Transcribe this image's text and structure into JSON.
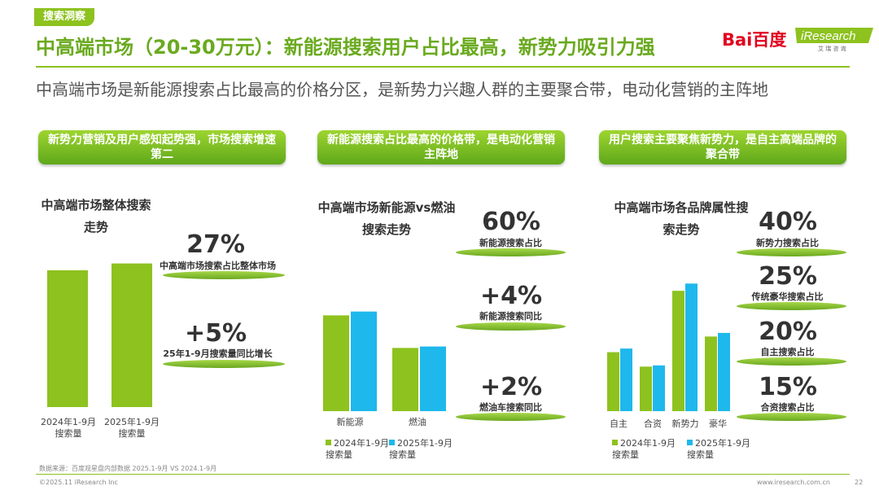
{
  "header": {
    "tag": "搜索洞察",
    "title": "中高端市场（20-30万元）：新能源搜索用户占比最高，新势力吸引力强",
    "subtitle": "中高端市场是新能源搜索占比最高的价格分区，是新势力兴趣人群的主要聚合带，电动化营销的主阵地",
    "baidu_logo": "Bai百度",
    "iresearch_logo": "iResearch",
    "iresearch_sub": "艾 瑞 咨 询"
  },
  "colors": {
    "green": "#8dc21f",
    "blue": "#1eb8ec",
    "accent": "#6aaa1f"
  },
  "panel1": {
    "banner": "新势力营销及用户感知起势强，市场搜索增速第二",
    "chart_title": "中高端市场整体搜索走势",
    "stat1_value": "27%",
    "stat1_label": "中高端市场搜索占比整体市场",
    "stat2_value": "+5%",
    "stat2_label": "25年1-9月搜索量同比增长"
  },
  "panel2": {
    "banner": "新能源搜索占比最高的价格带，是电动化营销主阵地",
    "chart_title": "中高端市场新能源vs燃油搜索走势",
    "stat1_value": "60%",
    "stat1_label": "新能源搜索占比",
    "stat2_value": "+4%",
    "stat2_label": "新能源搜索同比",
    "stat3_value": "+2%",
    "stat3_label": "燃油车搜索同比"
  },
  "panel3": {
    "banner": "用户搜索主要聚焦新势力，是自主高端品牌的聚合带",
    "chart_title": "中高端市场各品牌属性搜索走势",
    "stat1_value": "40%",
    "stat1_label": "新势力搜索占比",
    "stat2_value": "25%",
    "stat2_label": "传统豪华搜索占比",
    "stat3_value": "20%",
    "stat3_label": "自主搜索占比",
    "stat4_value": "15%",
    "stat4_label": "合资搜索占比"
  },
  "footer": {
    "source": "数据来源：百度观星盘内部数据 2025.1-9月 VS 2024.1-9月",
    "copyright": "©2025.11 iResearch Inc",
    "url": "www.iresearch.com.cn",
    "page": "22"
  },
  "chart_data": [
    {
      "type": "bar",
      "title": "中高端市场整体搜索走势",
      "categories": [
        "2024年1-9月\n搜索量",
        "2025年1-9月\n搜索量"
      ],
      "series": [
        {
          "name": "",
          "values": [
            100,
            105
          ]
        }
      ],
      "ylim": [
        0,
        125
      ]
    },
    {
      "type": "bar",
      "title": "中高端市场新能源vs燃油搜索走势",
      "categories": [
        "新能源",
        "燃油"
      ],
      "series": [
        {
          "name": "2024年1-9月\n搜索量",
          "values": [
            100,
            66
          ]
        },
        {
          "name": "2025年1-9月\n搜索量",
          "values": [
            104,
            67.5
          ]
        }
      ],
      "ylim": [
        0,
        136
      ]
    },
    {
      "type": "bar",
      "title": "中高端市场各品牌属性搜索走势",
      "categories": [
        "自主",
        "合资",
        "新势力",
        "豪华"
      ],
      "series": [
        {
          "name": "2024年1-9月\n搜索量",
          "values": [
            49,
            37,
            100,
            62
          ]
        },
        {
          "name": "2025年1-9月\n搜索量",
          "values": [
            52,
            38,
            106,
            65
          ]
        }
      ],
      "ylim": [
        0,
        115
      ]
    }
  ]
}
